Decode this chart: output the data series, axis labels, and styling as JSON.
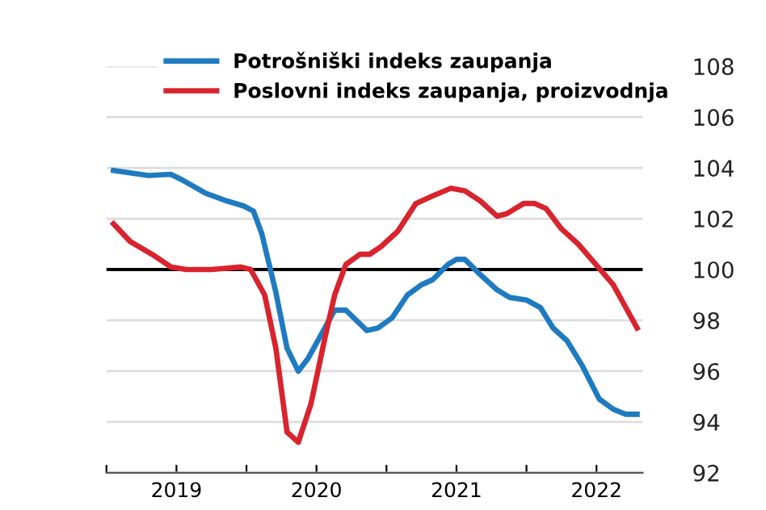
{
  "chart_data": {
    "type": "line",
    "series": [
      {
        "name": "Potrošniški indeks zaupanja",
        "color": "#1f7bc1",
        "x": [
          2019.05,
          2019.3,
          2019.46,
          2019.55,
          2019.71,
          2019.86,
          2019.98,
          2020.05,
          2020.11,
          2020.21,
          2020.29,
          2020.37,
          2020.44,
          2020.56,
          2020.63,
          2020.71,
          2020.86,
          2020.94,
          2021.04,
          2021.15,
          2021.25,
          2021.33,
          2021.44,
          2021.5,
          2021.56,
          2021.67,
          2021.79,
          2021.88,
          2022.0,
          2022.1,
          2022.19,
          2022.29,
          2022.4,
          2022.52,
          2022.62,
          2022.71,
          2022.79
        ],
        "values": [
          103.9,
          103.7,
          103.75,
          103.5,
          103.0,
          102.7,
          102.5,
          102.3,
          101.4,
          99.1,
          96.9,
          96.0,
          96.5,
          97.7,
          98.4,
          98.4,
          97.6,
          97.7,
          98.1,
          99.0,
          99.4,
          99.6,
          100.2,
          100.4,
          100.4,
          99.8,
          99.2,
          98.9,
          98.8,
          98.5,
          97.7,
          97.2,
          96.2,
          94.9,
          94.5,
          94.3,
          94.3
        ]
      },
      {
        "name": "Poslovni indeks zaupanja, proizvodnja",
        "color": "#d9232d",
        "x": [
          2019.05,
          2019.17,
          2019.34,
          2019.46,
          2019.57,
          2019.75,
          2019.96,
          2020.03,
          2020.13,
          2020.21,
          2020.29,
          2020.37,
          2020.46,
          2020.56,
          2020.63,
          2020.71,
          2020.81,
          2020.88,
          2020.96,
          2021.08,
          2021.21,
          2021.33,
          2021.46,
          2021.56,
          2021.67,
          2021.79,
          2021.86,
          2021.98,
          2022.06,
          2022.14,
          2022.25,
          2022.37,
          2022.48,
          2022.62,
          2022.71,
          2022.79
        ],
        "values": [
          101.8,
          101.1,
          100.55,
          100.1,
          100.0,
          100.0,
          100.1,
          100.0,
          99.0,
          96.9,
          93.6,
          93.2,
          94.7,
          97.3,
          99.0,
          100.2,
          100.6,
          100.6,
          100.9,
          101.5,
          102.6,
          102.9,
          103.2,
          103.1,
          102.7,
          102.1,
          102.2,
          102.6,
          102.6,
          102.4,
          101.6,
          101.0,
          100.3,
          99.4,
          98.5,
          97.7
        ]
      }
    ],
    "xlim": [
      2019,
      2022.83
    ],
    "xticks": [
      {
        "value": 2019,
        "label": null
      },
      {
        "value": 2019.5,
        "label": "2019"
      },
      {
        "value": 2020,
        "label": null
      },
      {
        "value": 2020.5,
        "label": "2020"
      },
      {
        "value": 2021,
        "label": null
      },
      {
        "value": 2021.5,
        "label": "2021"
      },
      {
        "value": 2022,
        "label": null
      },
      {
        "value": 2022.5,
        "label": "2022"
      }
    ],
    "ylim": [
      92,
      108
    ],
    "yticks": [
      92,
      94,
      96,
      98,
      100,
      102,
      104,
      106,
      108
    ],
    "ref_lines": [
      {
        "axis": "y",
        "value": 100,
        "color": "#000000"
      }
    ],
    "grid": "y",
    "legend": "top",
    "line_style": "solid",
    "marker": "none"
  }
}
